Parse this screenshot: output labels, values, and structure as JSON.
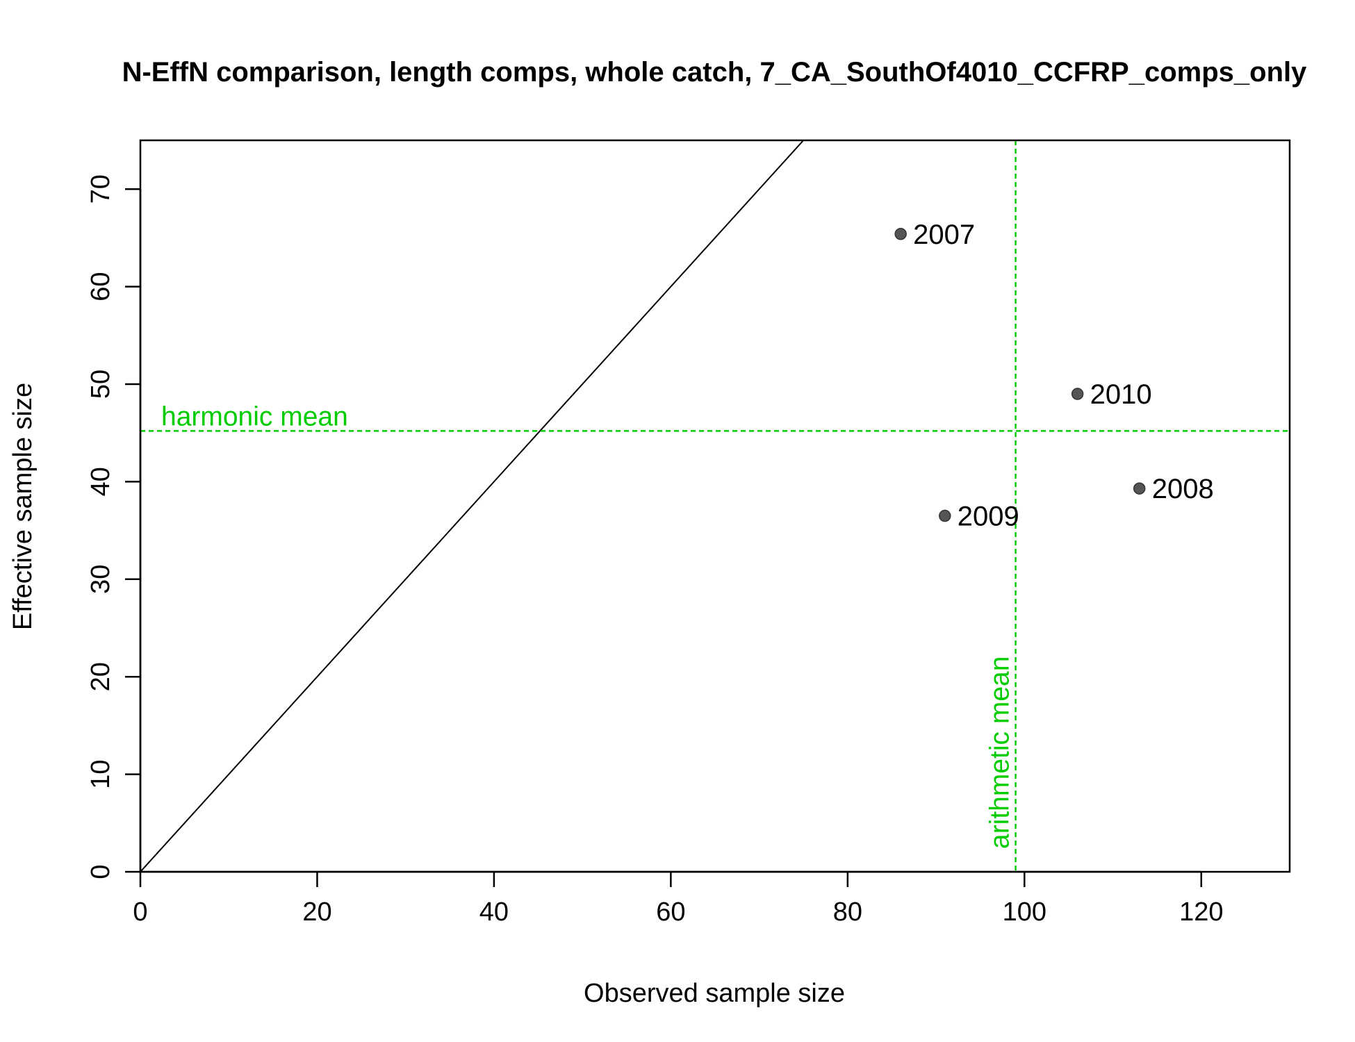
{
  "chart_data": {
    "type": "scatter",
    "title": "N-EffN comparison, length comps, whole catch, 7_CA_SouthOf4010_CCFRP_comps_only",
    "xlabel": "Observed sample size",
    "ylabel": "Effective sample size",
    "xlim": [
      0,
      130
    ],
    "ylim": [
      0,
      75
    ],
    "xticks": [
      0,
      20,
      40,
      60,
      80,
      100,
      120
    ],
    "yticks": [
      0,
      10,
      20,
      30,
      40,
      50,
      60,
      70
    ],
    "grid": false,
    "points": [
      {
        "label": "2007",
        "x": 86,
        "y": 65.4
      },
      {
        "label": "2008",
        "x": 113,
        "y": 39.3
      },
      {
        "label": "2009",
        "x": 91,
        "y": 36.5
      },
      {
        "label": "2010",
        "x": 106,
        "y": 49.0
      }
    ],
    "reference_lines": {
      "identity": {
        "slope": 1,
        "intercept": 0
      },
      "harmonic_mean": {
        "label": "harmonic mean",
        "y": 45.2
      },
      "arithmetic_mean": {
        "label": "arithmetic mean",
        "x": 99
      }
    },
    "colors": {
      "points": "#555555",
      "mean_lines": "#00cc00",
      "identity_line": "#000000"
    }
  }
}
